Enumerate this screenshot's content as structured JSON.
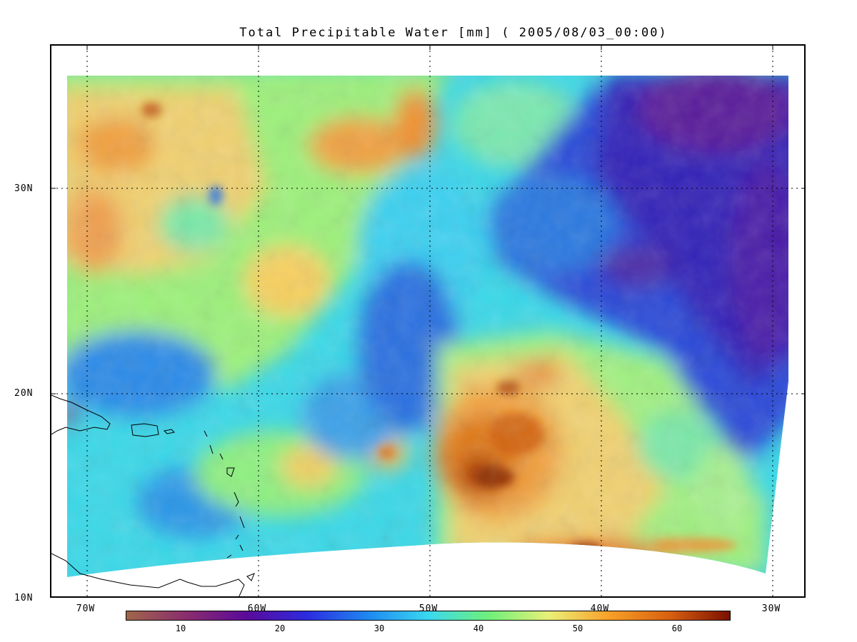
{
  "title": "Total Precipitable Water [mm]  ( 2005/08/03_00:00)",
  "y_axis": {
    "labels": [
      "30N",
      "20N",
      "10N"
    ]
  },
  "x_axis": {
    "labels": [
      "70W",
      "60W",
      "50W",
      "40W",
      "30W"
    ]
  },
  "colorbar": {
    "ticks": [
      "10",
      "20",
      "30",
      "40",
      "50",
      "60"
    ],
    "colors": [
      "#a0664a",
      "#8a2c6e",
      "#5a0a9a",
      "#2c2ce0",
      "#1e88f0",
      "#3ad8f0",
      "#6ef07a",
      "#eaf078",
      "#f8a028",
      "#d86010",
      "#7a1000"
    ]
  },
  "palette": {
    "dry": "#2a3cd0",
    "very_dry": "#5a1a9a",
    "moist": "#3ee0e0",
    "humid": "#9cf07a",
    "wet": "#f8c060",
    "very_wet": "#e07818",
    "extreme": "#8a2a00"
  }
}
